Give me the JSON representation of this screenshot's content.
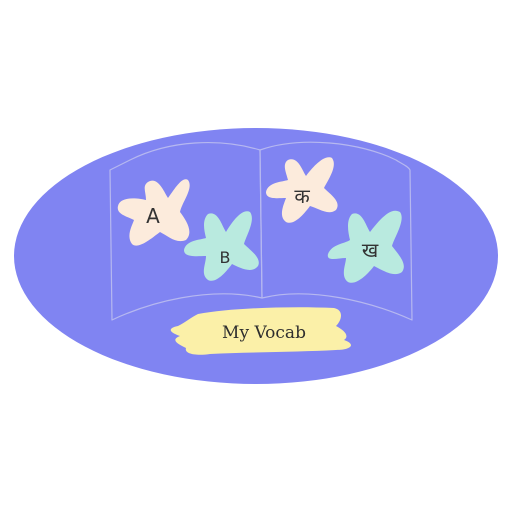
{
  "logo": {
    "title": "My Vocab",
    "letters": {
      "latin_a": "A",
      "latin_b": "B",
      "devanagari_ka": "क",
      "devanagari_kha": "ख"
    }
  },
  "colors": {
    "background": "#ffffff",
    "oval": "#8084f2",
    "book_lines": "#b6b8f0",
    "star_peach": "#fcebdc",
    "star_mint": "#b9eadf",
    "banner": "#fbf0a8",
    "text": "#333333"
  },
  "icons": [
    "open-book-icon",
    "star-blob-icon",
    "banner-icon"
  ]
}
